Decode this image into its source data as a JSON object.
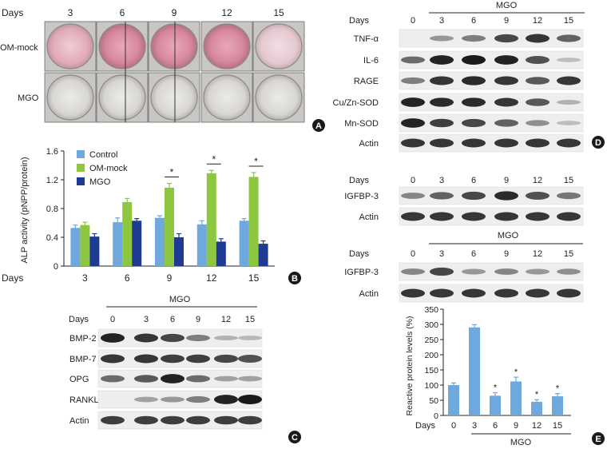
{
  "panelA": {
    "days_label": "Days",
    "days": [
      "3",
      "6",
      "9",
      "12",
      "15"
    ],
    "rows": [
      "OM-mock",
      "MGO"
    ],
    "badge": "A"
  },
  "panelB": {
    "badge": "B",
    "days_label": "Days",
    "ylabel": "ALP activity (pNPP/protein)",
    "significance": "*",
    "chart_data": {
      "type": "bar",
      "categories": [
        "3",
        "6",
        "9",
        "12",
        "15"
      ],
      "series": [
        {
          "name": "Control",
          "values": [
            0.53,
            0.61,
            0.67,
            0.58,
            0.63
          ],
          "errors": [
            0.04,
            0.06,
            0.03,
            0.05,
            0.03
          ]
        },
        {
          "name": "OM-mock",
          "values": [
            0.57,
            0.89,
            1.09,
            1.29,
            1.24
          ],
          "errors": [
            0.04,
            0.05,
            0.06,
            0.04,
            0.06
          ]
        },
        {
          "name": "MGO",
          "values": [
            0.41,
            0.63,
            0.4,
            0.34,
            0.31
          ],
          "errors": [
            0.04,
            0.03,
            0.05,
            0.04,
            0.04
          ]
        }
      ],
      "significant": [
        false,
        false,
        true,
        true,
        true
      ],
      "ylim": [
        0,
        1.6
      ],
      "yticks": [
        "0",
        "0.4",
        "0.8",
        "1.2",
        "1.6"
      ],
      "colors": [
        "#6fa8dc",
        "#8dc63f",
        "#1f3a93"
      ],
      "legend": "top-left"
    }
  },
  "panelC": {
    "badge": "C",
    "days_label": "Days",
    "group_label": "MGO",
    "days": [
      "0",
      "3",
      "6",
      "9",
      "12",
      "15"
    ],
    "rows": [
      "BMP-2",
      "BMP-7",
      "OPG",
      "RANKL",
      "Actin"
    ]
  },
  "panelD": {
    "badge": "D",
    "days_label": "Days",
    "group_label": "MGO",
    "days": [
      "0",
      "3",
      "6",
      "9",
      "12",
      "15"
    ],
    "rows": [
      "TNF-α",
      "IL-6",
      "RAGE",
      "Cu/Zn-SOD",
      "Mn-SOD",
      "Actin"
    ]
  },
  "panelIGF1": {
    "days_label": "Days",
    "days": [
      "0",
      "3",
      "6",
      "9",
      "12",
      "15"
    ],
    "rows": [
      "IGFBP-3",
      "Actin"
    ]
  },
  "panelIGF2": {
    "days_label": "Days",
    "group_label": "MGO",
    "days": [
      "0",
      "3",
      "6",
      "9",
      "12",
      "15"
    ],
    "rows": [
      "IGFBP-3",
      "Actin"
    ]
  },
  "panelE": {
    "badge": "E",
    "days_label": "Days",
    "group_label": "MGO",
    "ylabel": "Reactive protein levels (%)",
    "significance": "*",
    "chart_data": {
      "type": "bar",
      "categories": [
        "0",
        "3",
        "6",
        "9",
        "12",
        "15"
      ],
      "values": [
        100,
        290,
        65,
        112,
        45,
        63
      ],
      "errors": [
        7,
        9,
        10,
        14,
        7,
        9
      ],
      "significant": [
        false,
        false,
        true,
        true,
        true,
        true
      ],
      "ylim": [
        0,
        350
      ],
      "yticks": [
        "0",
        "50",
        "100",
        "150",
        "200",
        "250",
        "300",
        "350"
      ],
      "color": "#6fa8dc"
    }
  }
}
